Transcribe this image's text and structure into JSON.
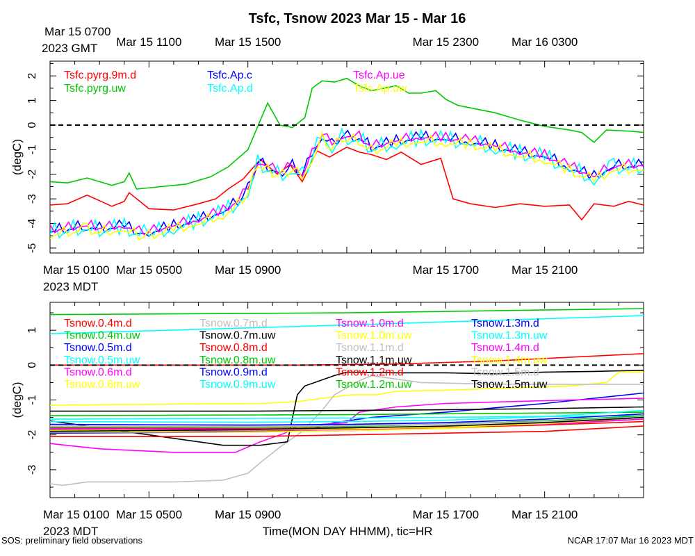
{
  "title": "Tsfc, Tsnow 2023 Mar 15 - Mar 16",
  "footer_left": "SOS: preliminary field observations",
  "footer_right": "NCAR 17:07 Mar 16 2023 MDT",
  "xlabel": "Time(MON DAY HHMM), tic=HR",
  "gmt_label": "2023 GMT",
  "mdt_label": "2023 MDT",
  "chart_data": [
    {
      "type": "line",
      "title": "Tsfc",
      "ylabel": "(degC)",
      "ylim": [
        -5.2,
        2.6
      ],
      "yticks": [
        -5,
        -4,
        -3,
        -2,
        -1,
        0,
        1,
        2
      ],
      "xlim": [
        0,
        24
      ],
      "x_ticks_bottom": [
        {
          "x": 0,
          "label": "Mar 15 0100"
        },
        {
          "x": 4,
          "label": "Mar 15 0500"
        },
        {
          "x": 8,
          "label": "Mar 15 0900"
        },
        {
          "x": 16,
          "label": "Mar 15 1700"
        },
        {
          "x": 20,
          "label": "Mar 15 2100"
        }
      ],
      "x_ticks_top": [
        {
          "x": 0,
          "label": "Mar 15 0700"
        },
        {
          "x": 4,
          "label": "Mar 15 1100"
        },
        {
          "x": 8,
          "label": "Mar 15 1500"
        },
        {
          "x": 16,
          "label": "Mar 15 2300"
        },
        {
          "x": 20,
          "label": "Mar 16 0300"
        }
      ],
      "zero_line": true,
      "series": [
        {
          "name": "Tsfc.pyrg.9m.d",
          "color": "#ff0000",
          "x": [
            0,
            0.7,
            1.5,
            2.5,
            3,
            3.2,
            4,
            5,
            6,
            6.7,
            7.2,
            7.8,
            8.5,
            9.2,
            9.7,
            10.2,
            10.8,
            11.3,
            12,
            12.5,
            13,
            13.6,
            14.2,
            15,
            15.8,
            16.3,
            17,
            18,
            19,
            20,
            21,
            21.5,
            22,
            22.8,
            23.4,
            24
          ],
          "y": [
            -3.25,
            -3.2,
            -2.85,
            -3.3,
            -3.1,
            -2.75,
            -3.4,
            -3.45,
            -3.2,
            -3.0,
            -2.6,
            -2.2,
            -1.4,
            -2.0,
            -1.6,
            -2.3,
            -1.05,
            -1.3,
            -0.9,
            -1.1,
            -1.2,
            -1.4,
            -1.1,
            -1.6,
            -1.35,
            -3.0,
            -3.2,
            -3.35,
            -3.2,
            -3.3,
            -3.25,
            -3.85,
            -3.2,
            -3.3,
            -3.1,
            -3.25
          ]
        },
        {
          "name": "Tsfc.pyrg.uw",
          "color": "#00c800",
          "x": [
            0,
            0.7,
            1.5,
            2.5,
            3,
            3.2,
            3.5,
            4.5,
            5.5,
            6.5,
            7.2,
            8,
            8.8,
            9.3,
            9.8,
            10.3,
            10.6,
            11,
            11.5,
            12,
            12.5,
            13,
            14,
            14.5,
            15,
            15.6,
            16,
            16.5,
            17,
            18,
            19,
            20,
            21,
            21.5,
            22,
            22.5,
            23.5,
            24
          ],
          "y": [
            -2.3,
            -2.35,
            -2.15,
            -2.45,
            -2.3,
            -1.95,
            -2.6,
            -2.5,
            -2.4,
            -2.1,
            -1.7,
            -1.0,
            0.9,
            0.0,
            -0.1,
            0.3,
            1.5,
            1.8,
            1.75,
            1.9,
            1.6,
            1.4,
            1.6,
            1.3,
            1.3,
            1.4,
            1.05,
            0.8,
            0.7,
            0.5,
            0.2,
            -0.05,
            -0.2,
            -0.3,
            -0.7,
            -0.2,
            -0.25,
            -0.3
          ]
        },
        {
          "name": "Tsfc.Ap.c",
          "color": "#0000ff",
          "offset": 0.05,
          "spike": 0.3,
          "x": [
            0,
            1.5,
            2,
            3,
            3.6,
            4,
            5,
            6,
            7,
            7.6,
            8,
            8.4,
            9,
            9.4,
            9.8,
            10.2,
            10.6,
            11,
            11.4,
            11.8,
            12.5,
            13,
            14,
            15,
            16,
            17,
            18,
            19,
            20,
            21,
            22,
            22.8,
            24
          ],
          "y": [
            -4.4,
            -4.2,
            -4.3,
            -4.2,
            -4.45,
            -4.45,
            -4.2,
            -3.95,
            -3.6,
            -3.2,
            -2.7,
            -1.6,
            -1.9,
            -2.0,
            -1.75,
            -2.1,
            -1.3,
            -0.5,
            -0.9,
            -0.55,
            -0.6,
            -1.0,
            -0.75,
            -0.6,
            -0.65,
            -0.75,
            -0.95,
            -1.2,
            -1.35,
            -1.8,
            -2.2,
            -1.75,
            -1.75
          ]
        },
        {
          "name": "Tsfc.Ap.d",
          "color": "#00ffff",
          "offset": -0.05,
          "spike": 0.45,
          "x": [
            0,
            1.5,
            2,
            3,
            3.6,
            4,
            5,
            6,
            7,
            7.6,
            8,
            8.4,
            9,
            9.4,
            9.8,
            10.2,
            10.6,
            11,
            11.4,
            11.8,
            12.5,
            13,
            14,
            15,
            16,
            17,
            18,
            19,
            20,
            21,
            22,
            22.8,
            24
          ],
          "y": [
            -4.4,
            -4.2,
            -4.3,
            -4.2,
            -4.45,
            -4.45,
            -4.2,
            -3.95,
            -3.6,
            -3.2,
            -2.7,
            -1.6,
            -1.9,
            -2.2,
            -1.75,
            -2.1,
            -1.3,
            -0.5,
            -0.9,
            -0.55,
            -0.6,
            -1.0,
            -0.75,
            -0.6,
            -0.65,
            -0.75,
            -0.95,
            -1.2,
            -1.35,
            -1.8,
            -2.2,
            -1.75,
            -1.75
          ]
        },
        {
          "name": "Tsfc.Ap.ue",
          "color": "#ff00ff",
          "offset": 0.1,
          "spike": 0.25,
          "x": [
            0,
            1.5,
            2,
            3,
            3.6,
            4,
            5,
            6,
            7,
            7.6,
            8,
            8.4,
            9,
            9.4,
            9.8,
            10.2,
            10.6,
            11,
            11.4,
            11.8,
            12.5,
            13,
            14,
            15,
            16,
            17,
            18,
            19,
            20,
            21,
            22,
            22.8,
            24
          ],
          "y": [
            -4.4,
            -4.2,
            -4.3,
            -4.2,
            -4.45,
            -4.45,
            -4.2,
            -3.95,
            -3.6,
            -3.2,
            -2.7,
            -1.6,
            -1.9,
            -2.0,
            -1.75,
            -2.1,
            -1.3,
            -0.5,
            -0.9,
            -0.55,
            -0.6,
            -1.0,
            -0.75,
            -0.6,
            -0.65,
            -0.75,
            -0.95,
            -1.2,
            -1.35,
            -1.8,
            -2.2,
            -1.75,
            -1.75
          ]
        },
        {
          "name": "Tsfc.Ap.uw",
          "color": "#ffff00",
          "offset": -0.1,
          "spike": 0.3,
          "x": [
            0,
            1.5,
            2,
            3,
            3.6,
            4,
            5,
            6,
            7,
            7.6,
            8,
            8.4,
            9,
            9.4,
            9.8,
            10.2,
            10.6,
            11,
            11.4,
            11.8,
            12.5,
            13,
            14,
            15,
            16,
            17,
            18,
            19,
            20,
            21,
            22,
            22.8,
            24
          ],
          "y": [
            -4.4,
            -4.2,
            -4.3,
            -4.2,
            -4.45,
            -4.45,
            -4.2,
            -3.95,
            -3.6,
            -3.2,
            -2.7,
            -1.6,
            -1.9,
            -2.0,
            -1.75,
            -2.1,
            -1.3,
            -0.5,
            -0.9,
            -0.55,
            -0.6,
            -1.0,
            -0.75,
            -0.6,
            -0.65,
            -0.75,
            -0.95,
            -1.2,
            -1.35,
            -1.8,
            -2.2,
            -1.75,
            -1.75
          ]
        }
      ]
    },
    {
      "type": "line",
      "title": "Tsnow",
      "ylabel": "(degC)",
      "ylim": [
        -3.8,
        1.8
      ],
      "yticks": [
        -3,
        -2,
        -1,
        0,
        1
      ],
      "xlim": [
        0,
        24
      ],
      "x_ticks_bottom": [
        {
          "x": 0,
          "label": "Mar 15 0100"
        },
        {
          "x": 4,
          "label": "Mar 15 0500"
        },
        {
          "x": 8,
          "label": "Mar 15 0900"
        },
        {
          "x": 16,
          "label": "Mar 15 1700"
        },
        {
          "x": 20,
          "label": "Mar 15 2100"
        }
      ],
      "zero_line": true,
      "series": [
        {
          "name": "Tsnow.0.4m.d",
          "color": "#ff0000",
          "x": [
            0,
            10,
            14,
            18,
            24
          ],
          "y": [
            0.0,
            0.0,
            0.03,
            0.12,
            0.33
          ]
        },
        {
          "name": "Tsnow.0.4m.uw",
          "color": "#00c800",
          "x": [
            0,
            12,
            24
          ],
          "y": [
            1.45,
            1.5,
            1.62
          ]
        },
        {
          "name": "Tsnow.0.5m.d",
          "color": "#0000ff",
          "x": [
            0,
            8,
            9.5,
            10.5,
            11.5,
            13,
            16,
            20,
            24
          ],
          "y": [
            -1.85,
            -1.9,
            -1.88,
            -1.85,
            -1.65,
            -1.5,
            -1.35,
            -1.1,
            -0.8
          ]
        },
        {
          "name": "Tsnow.0.5m.uw",
          "color": "#00ffff",
          "x": [
            0,
            12,
            24
          ],
          "y": [
            0.9,
            1.15,
            1.42
          ]
        },
        {
          "name": "Tsnow.0.6m.d",
          "color": "#ff00ff",
          "x": [
            0,
            2,
            5,
            7.5,
            8.5,
            9.5,
            10,
            11,
            12,
            12.5,
            14,
            16,
            20,
            24
          ],
          "y": [
            -2.25,
            -2.4,
            -2.5,
            -2.5,
            -2.2,
            -1.95,
            -1.75,
            -1.7,
            -1.65,
            -1.35,
            -1.2,
            -1.1,
            -1.02,
            -0.95
          ]
        },
        {
          "name": "Tsnow.0.6m.uw",
          "color": "#ffff00",
          "x": [
            0,
            5,
            8.5,
            10,
            11,
            12.2,
            13.2,
            14,
            16,
            18,
            21,
            22.5,
            23,
            24
          ],
          "y": [
            -1.15,
            -1.12,
            -1.1,
            -1.05,
            -0.95,
            -0.85,
            -0.85,
            -0.75,
            -0.72,
            -0.67,
            -0.6,
            -0.5,
            -0.2,
            -0.2
          ]
        },
        {
          "name": "Tsnow.0.7m.d",
          "color": "#c0c0c0",
          "x": [
            0,
            0.5,
            1.5,
            3,
            5,
            7,
            8,
            8.5,
            9.3,
            10.2,
            11,
            11.5,
            12.5,
            13,
            15,
            18,
            22,
            24
          ],
          "y": [
            -3.4,
            -3.45,
            -3.35,
            -3.35,
            -3.35,
            -3.3,
            -3.1,
            -2.8,
            -2.35,
            -1.9,
            -1.3,
            -0.85,
            -0.45,
            -0.3,
            -0.5,
            -0.55,
            -0.55,
            -0.55
          ]
        },
        {
          "name": "Tsnow.0.7m.uw",
          "color": "#000000",
          "x": [
            0,
            2,
            4,
            5,
            7,
            8,
            8.5,
            9.6,
            10,
            10.3,
            10.7,
            11.5,
            12,
            14,
            16,
            18,
            20,
            22,
            24
          ],
          "y": [
            -1.6,
            -1.8,
            -2.0,
            -2.1,
            -2.3,
            -2.3,
            -2.3,
            -2.2,
            -0.85,
            -0.6,
            -0.5,
            -0.3,
            -0.2,
            -0.22,
            -0.22,
            -0.25,
            -0.2,
            -0.18,
            -0.15
          ]
        },
        {
          "name": "Tsnow.0.8m.d",
          "color": "#ff0000",
          "x": [
            0,
            8,
            12,
            16,
            20,
            24
          ],
          "y": [
            -2.05,
            -2.05,
            -2.0,
            -1.95,
            -1.9,
            -1.75
          ]
        },
        {
          "name": "Tsnow.0.8m.uw",
          "color": "#00c800",
          "x": [
            0,
            12,
            24
          ],
          "y": [
            -1.45,
            -1.42,
            -1.35
          ]
        },
        {
          "name": "Tsnow.0.9m.d",
          "color": "#0000ff",
          "x": [
            0,
            8,
            12,
            16,
            20,
            24
          ],
          "y": [
            -1.95,
            -1.92,
            -1.88,
            -1.8,
            -1.7,
            -1.5
          ]
        },
        {
          "name": "Tsnow.0.9m.uw",
          "color": "#00ffff",
          "x": [
            0,
            12,
            24
          ],
          "y": [
            -1.55,
            -1.52,
            -1.45
          ]
        },
        {
          "name": "Tsnow.1.0m.d",
          "color": "#ff00ff",
          "x": [
            0,
            8,
            12,
            16,
            20,
            24
          ],
          "y": [
            -1.88,
            -1.88,
            -1.85,
            -1.8,
            -1.7,
            -1.55
          ]
        },
        {
          "name": "Tsnow.1.0m.uw",
          "color": "#ffff00",
          "x": [
            0,
            8,
            12,
            16,
            20,
            24
          ],
          "y": [
            -1.92,
            -1.92,
            -1.88,
            -1.82,
            -1.72,
            -1.55
          ]
        },
        {
          "name": "Tsnow.1.1m.d",
          "color": "#c0c0c0",
          "x": [
            0,
            8,
            12,
            16,
            20,
            24
          ],
          "y": [
            -1.75,
            -1.75,
            -1.72,
            -1.68,
            -1.6,
            -1.45
          ]
        },
        {
          "name": "Tsnow.1.1m.uw",
          "color": "#000000",
          "x": [
            0,
            8,
            12,
            16,
            20,
            24
          ],
          "y": [
            -1.32,
            -1.32,
            -1.3,
            -1.28,
            -1.25,
            -1.2
          ]
        },
        {
          "name": "Tsnow.1.2m.d",
          "color": "#ff0000",
          "x": [
            0,
            8,
            12,
            16,
            20,
            24
          ],
          "y": [
            -1.8,
            -1.82,
            -1.8,
            -1.78,
            -1.72,
            -1.62
          ]
        },
        {
          "name": "Tsnow.1.2m.uw",
          "color": "#00c800",
          "x": [
            0,
            8,
            12,
            16,
            20,
            24
          ],
          "y": [
            -1.78,
            -1.78,
            -1.76,
            -1.7,
            -1.6,
            -1.45
          ]
        },
        {
          "name": "Tsnow.1.3m.d",
          "color": "#0000ff",
          "x": [
            0,
            8,
            12,
            16,
            20,
            24
          ],
          "y": [
            -1.7,
            -1.72,
            -1.7,
            -1.65,
            -1.55,
            -1.4
          ]
        },
        {
          "name": "Tsnow.1.3m.uw",
          "color": "#00ffff",
          "x": [
            0,
            8,
            12,
            16,
            20,
            24
          ],
          "y": [
            -1.62,
            -1.64,
            -1.62,
            -1.58,
            -1.48,
            -1.3
          ]
        },
        {
          "name": "Tsnow.1.4m.d",
          "color": "#ff00ff",
          "x": [
            0,
            8,
            12,
            16,
            20,
            24
          ],
          "y": [
            -1.83,
            -1.84,
            -1.82,
            -1.78,
            -1.7,
            -1.55
          ]
        },
        {
          "name": "Tsnow.1.4m.uw",
          "color": "#ffff00",
          "x": [
            0,
            8,
            12,
            16,
            20,
            24
          ],
          "y": [
            -1.87,
            -1.86,
            -1.83,
            -1.78,
            -1.68,
            -1.5
          ]
        },
        {
          "name": "Tsnow.1.5m.d",
          "color": "#c0c0c0",
          "x": [
            0,
            8,
            12,
            16,
            20,
            24
          ],
          "y": [
            -1.76,
            -1.76,
            -1.74,
            -1.7,
            -1.62,
            -1.48
          ]
        },
        {
          "name": "Tsnow.1.5m.uw",
          "color": "#000000",
          "x": [
            0,
            8,
            12,
            16,
            20,
            24
          ],
          "y": [
            -1.9,
            -1.85,
            -1.8,
            -1.75,
            -1.65,
            -1.5
          ]
        }
      ]
    }
  ]
}
